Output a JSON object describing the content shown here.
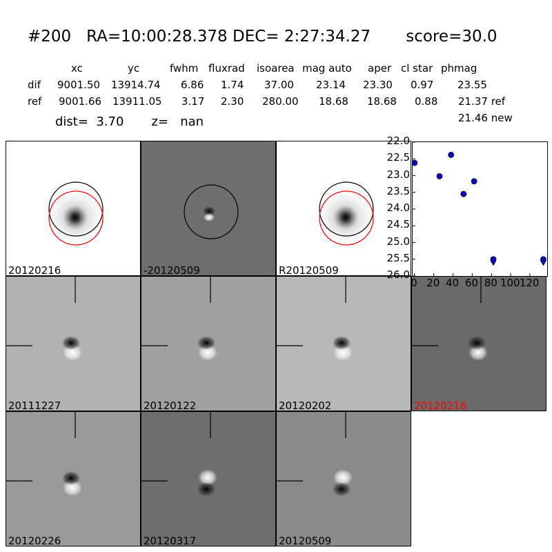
{
  "title": "#200   RA=10:00:28.378 DEC= 2:27:34.27       score=30.0",
  "table": {
    "headers": [
      "xc",
      "yc",
      "fwhm",
      "fluxrad",
      "isoarea",
      "mag auto",
      "aper",
      "cl star",
      "phmag"
    ],
    "rows": [
      {
        "label": "dif",
        "values": [
          "9001.50",
          "13914.74",
          "6.86",
          "1.74",
          "37.00",
          "23.14",
          "23.30",
          "0.97",
          "23.55"
        ]
      },
      {
        "label": "ref",
        "values": [
          "9001.66",
          "13911.05",
          "3.17",
          "2.30",
          "280.00",
          "18.68",
          "18.68",
          "0.88",
          "21.37 ref"
        ]
      }
    ],
    "extra_phmag": "21.46 new"
  },
  "dist_line": "dist=  3.70       z=   nan",
  "panels": [
    {
      "label": "20120216",
      "bg": "#ffffff",
      "type": "ref",
      "label_color": "#000000"
    },
    {
      "label": "-20120509",
      "bg": "#6e6e6e",
      "type": "diff-circle",
      "label_color": "#000000"
    },
    {
      "label": "R20120509",
      "bg": "#ffffff",
      "type": "ref",
      "label_color": "#000000"
    },
    {
      "label": "20111227",
      "bg": "#b2b2b2",
      "type": "stamp",
      "label_color": "#000000"
    },
    {
      "label": "20120122",
      "bg": "#a0a0a0",
      "type": "stamp",
      "label_color": "#000000"
    },
    {
      "label": "20120202",
      "bg": "#b8b8b8",
      "type": "stamp",
      "label_color": "#000000"
    },
    {
      "label": "20120216",
      "bg": "#6a6a6a",
      "type": "stamp",
      "label_color": "#ff0000"
    },
    {
      "label": "20120226",
      "bg": "#9a9a9a",
      "type": "stamp-b",
      "label_color": "#000000"
    },
    {
      "label": "20120317",
      "bg": "#6e6e6e",
      "type": "stamp-w",
      "label_color": "#000000"
    },
    {
      "label": "20120509",
      "bg": "#8a8a8a",
      "type": "stamp-w",
      "label_color": "#000000"
    }
  ],
  "chart_data": {
    "type": "scatter",
    "ylim": [
      26.0,
      22.0
    ],
    "xlim": [
      -2,
      138
    ],
    "yticks": [
      "22.0",
      "22.5",
      "23.0",
      "23.5",
      "24.0",
      "24.5",
      "25.0",
      "25.5",
      "26.0"
    ],
    "xticks": [
      "0",
      "20",
      "40",
      "60",
      "80",
      "100",
      "120"
    ],
    "points": [
      {
        "x": 0,
        "y": 22.62
      },
      {
        "x": 26,
        "y": 23.02
      },
      {
        "x": 38,
        "y": 22.38
      },
      {
        "x": 51,
        "y": 23.55
      },
      {
        "x": 62,
        "y": 23.17
      }
    ],
    "limits": [
      {
        "x": 82,
        "y": 25.5
      },
      {
        "x": 134,
        "y": 25.5
      }
    ],
    "color": "#0000cc"
  }
}
